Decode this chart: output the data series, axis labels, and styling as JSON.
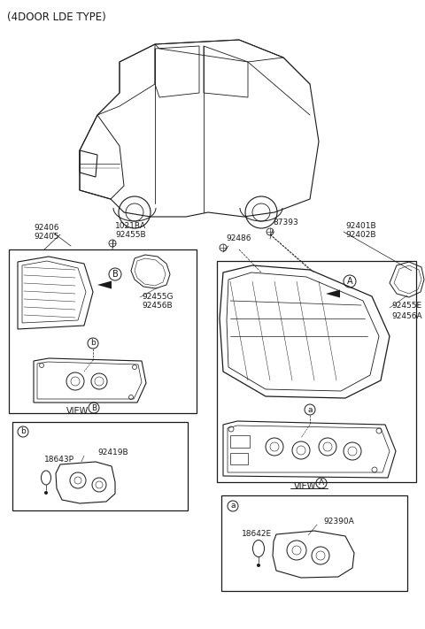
{
  "bg_color": "#ffffff",
  "line_color": "#1a1a1a",
  "title": "(4DOOR LDE TYPE)",
  "parts": {
    "1021BA": "1021BA",
    "92455B": "92455B",
    "92406": "92406",
    "92405": "92405",
    "87393": "87393",
    "92486": "92486",
    "92401B": "92401B",
    "92402B": "92402B",
    "92455G": "92455G",
    "92456B": "92456B",
    "92455E": "92455E",
    "92456A": "92456A",
    "92419B": "92419B",
    "18643P": "18643P",
    "92390A": "92390A",
    "18642E": "18642E"
  },
  "view_b_label": "VIEW",
  "view_a_label": "VIEW",
  "fig_width": 4.8,
  "fig_height": 7.11,
  "dpi": 100
}
